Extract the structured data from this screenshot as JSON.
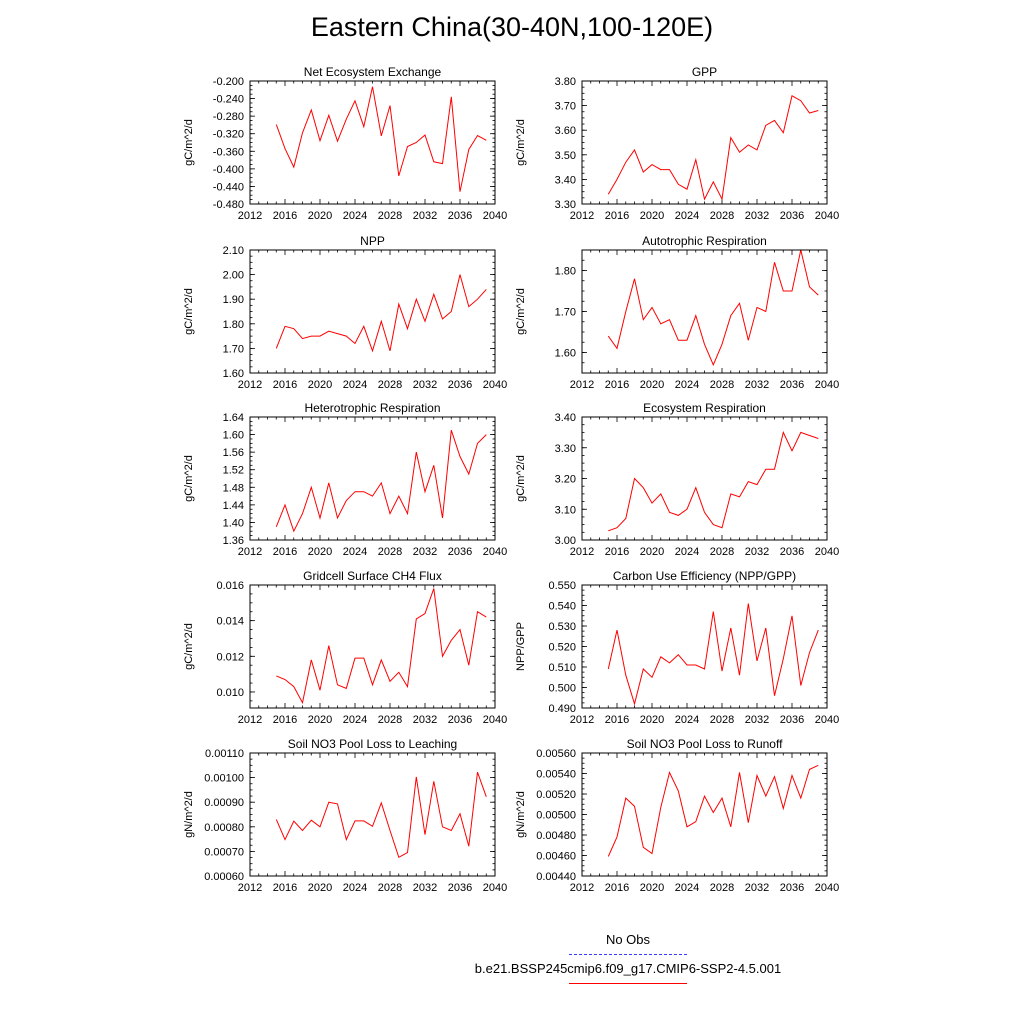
{
  "figure": {
    "title": "Eastern China(30-40N,100-120E)",
    "legend": {
      "obs_label": "No Obs",
      "obs_color": "#3a3aff",
      "model_label": "b.e21.BSSP245cmip6.f09_g17.CMIP6-SSP2-4.5.001",
      "model_color": "#ff0000"
    }
  },
  "chart_data": [
    {
      "type": "line",
      "title": "Net Ecosystem Exchange",
      "ylabel": "gC/m^2/d",
      "xlim": [
        2012,
        2040
      ],
      "ylim": [
        -0.48,
        -0.2
      ],
      "xticks": [
        "2012",
        "2016",
        "2020",
        "2024",
        "2028",
        "2032",
        "2036",
        "2040"
      ],
      "yticks": [
        "-0.480",
        "-0.440",
        "-0.400",
        "-0.360",
        "-0.320",
        "-0.280",
        "-0.240",
        "-0.200"
      ],
      "x": [
        2015,
        2016,
        2017,
        2018,
        2019,
        2020,
        2021,
        2022,
        2023,
        2024,
        2025,
        2026,
        2027,
        2028,
        2029,
        2030,
        2031,
        2032,
        2033,
        2034,
        2035,
        2036,
        2037,
        2038,
        2039
      ],
      "series": [
        {
          "values": [
            -0.299,
            -0.354,
            -0.396,
            -0.318,
            -0.266,
            -0.336,
            -0.278,
            -0.337,
            -0.287,
            -0.245,
            -0.304,
            -0.213,
            -0.325,
            -0.256,
            -0.416,
            -0.349,
            -0.34,
            -0.323,
            -0.384,
            -0.388,
            -0.236,
            -0.452,
            -0.356,
            -0.324,
            -0.335
          ],
          "color": "#ff0000"
        }
      ]
    },
    {
      "type": "line",
      "title": "GPP",
      "ylabel": "gC/m^2/d",
      "xlim": [
        2012,
        2040
      ],
      "ylim": [
        3.3,
        3.8
      ],
      "xticks": [
        "2012",
        "2016",
        "2020",
        "2024",
        "2028",
        "2032",
        "2036",
        "2040"
      ],
      "yticks": [
        "3.30",
        "3.40",
        "3.50",
        "3.60",
        "3.70",
        "3.80"
      ],
      "x": [
        2015,
        2016,
        2017,
        2018,
        2019,
        2020,
        2021,
        2022,
        2023,
        2024,
        2025,
        2026,
        2027,
        2028,
        2029,
        2030,
        2031,
        2032,
        2033,
        2034,
        2035,
        2036,
        2037,
        2038,
        2039
      ],
      "series": [
        {
          "values": [
            3.34,
            3.4,
            3.47,
            3.52,
            3.43,
            3.46,
            3.44,
            3.44,
            3.38,
            3.36,
            3.48,
            3.32,
            3.39,
            3.32,
            3.57,
            3.51,
            3.54,
            3.52,
            3.62,
            3.64,
            3.59,
            3.74,
            3.72,
            3.67,
            3.68
          ],
          "color": "#ff0000"
        }
      ]
    },
    {
      "type": "line",
      "title": "NPP",
      "ylabel": "gC/m^2/d",
      "xlim": [
        2012,
        2040
      ],
      "ylim": [
        1.6,
        2.1
      ],
      "xticks": [
        "2012",
        "2016",
        "2020",
        "2024",
        "2028",
        "2032",
        "2036",
        "2040"
      ],
      "yticks": [
        "1.60",
        "1.70",
        "1.80",
        "1.90",
        "2.00",
        "2.10"
      ],
      "x": [
        2015,
        2016,
        2017,
        2018,
        2019,
        2020,
        2021,
        2022,
        2023,
        2024,
        2025,
        2026,
        2027,
        2028,
        2029,
        2030,
        2031,
        2032,
        2033,
        2034,
        2035,
        2036,
        2037,
        2038,
        2039
      ],
      "series": [
        {
          "values": [
            1.7,
            1.79,
            1.78,
            1.74,
            1.75,
            1.75,
            1.77,
            1.76,
            1.75,
            1.72,
            1.79,
            1.69,
            1.81,
            1.69,
            1.88,
            1.78,
            1.9,
            1.81,
            1.92,
            1.82,
            1.85,
            2.0,
            1.87,
            1.9,
            1.94
          ],
          "color": "#ff0000"
        }
      ]
    },
    {
      "type": "line",
      "title": "Autotrophic Respiration",
      "ylabel": "gC/m^2/d",
      "xlim": [
        2012,
        2040
      ],
      "ylim": [
        1.55,
        1.85
      ],
      "xticks": [
        "2012",
        "2016",
        "2020",
        "2024",
        "2028",
        "2032",
        "2036",
        "2040"
      ],
      "yticks": [
        "1.60",
        "1.70",
        "1.80"
      ],
      "x": [
        2015,
        2016,
        2017,
        2018,
        2019,
        2020,
        2021,
        2022,
        2023,
        2024,
        2025,
        2026,
        2027,
        2028,
        2029,
        2030,
        2031,
        2032,
        2033,
        2034,
        2035,
        2036,
        2037,
        2038,
        2039
      ],
      "series": [
        {
          "values": [
            1.64,
            1.61,
            1.7,
            1.78,
            1.68,
            1.71,
            1.67,
            1.68,
            1.63,
            1.63,
            1.69,
            1.62,
            1.57,
            1.62,
            1.69,
            1.72,
            1.63,
            1.71,
            1.7,
            1.82,
            1.75,
            1.75,
            1.85,
            1.76,
            1.74
          ],
          "color": "#ff0000"
        }
      ]
    },
    {
      "type": "line",
      "title": "Heterotrophic Respiration",
      "ylabel": "gC/m^2/d",
      "xlim": [
        2012,
        2040
      ],
      "ylim": [
        1.36,
        1.64
      ],
      "xticks": [
        "2012",
        "2016",
        "2020",
        "2024",
        "2028",
        "2032",
        "2036",
        "2040"
      ],
      "yticks": [
        "1.36",
        "1.40",
        "1.44",
        "1.48",
        "1.52",
        "1.56",
        "1.60",
        "1.64"
      ],
      "x": [
        2015,
        2016,
        2017,
        2018,
        2019,
        2020,
        2021,
        2022,
        2023,
        2024,
        2025,
        2026,
        2027,
        2028,
        2029,
        2030,
        2031,
        2032,
        2033,
        2034,
        2035,
        2036,
        2037,
        2038,
        2039
      ],
      "series": [
        {
          "values": [
            1.39,
            1.44,
            1.38,
            1.42,
            1.48,
            1.41,
            1.49,
            1.41,
            1.45,
            1.47,
            1.47,
            1.46,
            1.49,
            1.42,
            1.46,
            1.42,
            1.56,
            1.47,
            1.53,
            1.41,
            1.61,
            1.55,
            1.51,
            1.58,
            1.6
          ],
          "color": "#ff0000"
        }
      ]
    },
    {
      "type": "line",
      "title": "Ecosystem Respiration",
      "ylabel": "gC/m^2/d",
      "xlim": [
        2012,
        2040
      ],
      "ylim": [
        3.0,
        3.4
      ],
      "xticks": [
        "2012",
        "2016",
        "2020",
        "2024",
        "2028",
        "2032",
        "2036",
        "2040"
      ],
      "yticks": [
        "3.00",
        "3.10",
        "3.20",
        "3.30",
        "3.40"
      ],
      "x": [
        2015,
        2016,
        2017,
        2018,
        2019,
        2020,
        2021,
        2022,
        2023,
        2024,
        2025,
        2026,
        2027,
        2028,
        2029,
        2030,
        2031,
        2032,
        2033,
        2034,
        2035,
        2036,
        2037,
        2038,
        2039
      ],
      "series": [
        {
          "values": [
            3.03,
            3.04,
            3.07,
            3.2,
            3.17,
            3.12,
            3.15,
            3.09,
            3.08,
            3.1,
            3.17,
            3.09,
            3.05,
            3.04,
            3.15,
            3.14,
            3.19,
            3.18,
            3.23,
            3.23,
            3.35,
            3.29,
            3.35,
            3.34,
            3.33
          ],
          "color": "#ff0000"
        }
      ]
    },
    {
      "type": "line",
      "title": "Gridcell Surface CH4 Flux",
      "ylabel": "gC/m^2/d",
      "xlim": [
        2012,
        2040
      ],
      "ylim": [
        0.0091,
        0.016
      ],
      "xticks": [
        "2012",
        "2016",
        "2020",
        "2024",
        "2028",
        "2032",
        "2036",
        "2040"
      ],
      "yticks": [
        "0.010",
        "0.012",
        "0.014",
        "0.016"
      ],
      "x": [
        2015,
        2016,
        2017,
        2018,
        2019,
        2020,
        2021,
        2022,
        2023,
        2024,
        2025,
        2026,
        2027,
        2028,
        2029,
        2030,
        2031,
        2032,
        2033,
        2034,
        2035,
        2036,
        2037,
        2038,
        2039
      ],
      "series": [
        {
          "values": [
            0.0109,
            0.0107,
            0.0103,
            0.0094,
            0.0118,
            0.0101,
            0.0126,
            0.0104,
            0.0102,
            0.0119,
            0.0119,
            0.0104,
            0.0118,
            0.0106,
            0.0111,
            0.0103,
            0.0141,
            0.0144,
            0.0158,
            0.012,
            0.0129,
            0.0135,
            0.0115,
            0.0145,
            0.0142
          ],
          "color": "#ff0000"
        }
      ]
    },
    {
      "type": "line",
      "title": "Carbon Use Efficiency (NPP/GPP)",
      "ylabel": "NPP/GPP",
      "xlim": [
        2012,
        2040
      ],
      "ylim": [
        0.49,
        0.55
      ],
      "xticks": [
        "2012",
        "2016",
        "2020",
        "2024",
        "2028",
        "2032",
        "2036",
        "2040"
      ],
      "yticks": [
        "0.490",
        "0.500",
        "0.510",
        "0.520",
        "0.530",
        "0.540",
        "0.550"
      ],
      "x": [
        2015,
        2016,
        2017,
        2018,
        2019,
        2020,
        2021,
        2022,
        2023,
        2024,
        2025,
        2026,
        2027,
        2028,
        2029,
        2030,
        2031,
        2032,
        2033,
        2034,
        2035,
        2036,
        2037,
        2038,
        2039
      ],
      "series": [
        {
          "values": [
            0.509,
            0.528,
            0.506,
            0.492,
            0.509,
            0.505,
            0.515,
            0.512,
            0.516,
            0.511,
            0.511,
            0.509,
            0.537,
            0.508,
            0.529,
            0.506,
            0.541,
            0.513,
            0.529,
            0.496,
            0.514,
            0.535,
            0.501,
            0.517,
            0.528
          ],
          "color": "#ff0000"
        }
      ]
    },
    {
      "type": "line",
      "title": "Soil NO3 Pool Loss to Leaching",
      "ylabel": "gN/m^2/d",
      "xlim": [
        2012,
        2040
      ],
      "ylim": [
        0.0006,
        0.0011
      ],
      "xticks": [
        "2012",
        "2016",
        "2020",
        "2024",
        "2028",
        "2032",
        "2036",
        "2040"
      ],
      "yticks": [
        "0.00060",
        "0.00070",
        "0.00080",
        "0.00090",
        "0.00100",
        "0.00110"
      ],
      "x": [
        2015,
        2016,
        2017,
        2018,
        2019,
        2020,
        2021,
        2022,
        2023,
        2024,
        2025,
        2026,
        2027,
        2028,
        2029,
        2030,
        2031,
        2032,
        2033,
        2034,
        2035,
        2036,
        2037,
        2038,
        2039
      ],
      "series": [
        {
          "values": [
            0.00083,
            0.000748,
            0.000823,
            0.000785,
            0.000827,
            0.0008,
            0.0009,
            0.000893,
            0.000748,
            0.000824,
            0.000824,
            0.000802,
            0.000897,
            0.000785,
            0.000676,
            0.000695,
            0.001003,
            0.000768,
            0.000985,
            0.0008,
            0.000785,
            0.000853,
            0.000721,
            0.001022,
            0.000922
          ],
          "color": "#ff0000"
        }
      ]
    },
    {
      "type": "line",
      "title": "Soil NO3 Pool Loss to Runoff",
      "ylabel": "gN/m^2/d",
      "xlim": [
        2012,
        2040
      ],
      "ylim": [
        0.0044,
        0.0056
      ],
      "xticks": [
        "2012",
        "2016",
        "2020",
        "2024",
        "2028",
        "2032",
        "2036",
        "2040"
      ],
      "yticks": [
        "0.00440",
        "0.00460",
        "0.00480",
        "0.00500",
        "0.00520",
        "0.00540",
        "0.00560"
      ],
      "x": [
        2015,
        2016,
        2017,
        2018,
        2019,
        2020,
        2021,
        2022,
        2023,
        2024,
        2025,
        2026,
        2027,
        2028,
        2029,
        2030,
        2031,
        2032,
        2033,
        2034,
        2035,
        2036,
        2037,
        2038,
        2039
      ],
      "series": [
        {
          "values": [
            0.00459,
            0.00478,
            0.00516,
            0.00508,
            0.00468,
            0.00462,
            0.00507,
            0.00541,
            0.00523,
            0.00488,
            0.00493,
            0.00518,
            0.00502,
            0.00516,
            0.00488,
            0.00541,
            0.00492,
            0.00538,
            0.00518,
            0.00537,
            0.00506,
            0.00538,
            0.00516,
            0.00544,
            0.00548
          ],
          "color": "#ff0000"
        }
      ]
    }
  ]
}
